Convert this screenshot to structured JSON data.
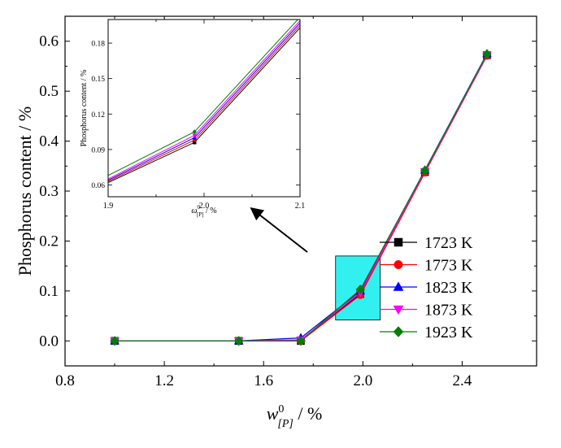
{
  "chart_data": [
    {
      "type": "line",
      "xlabel": "w",
      "xlabel_sup": "0",
      "xlabel_sub": "[P]",
      "xlabel_unit": " / %",
      "ylabel": "Phosphorus content / %",
      "xlim": [
        0.8,
        2.7
      ],
      "ylim": [
        -0.05,
        0.65
      ],
      "xticks": [
        0.8,
        1.2,
        1.6,
        2.0,
        2.4
      ],
      "xtick_labels": [
        "0.8",
        "1.2",
        "1.6",
        "2.0",
        "2.4"
      ],
      "yticks": [
        0.0,
        0.1,
        0.2,
        0.3,
        0.4,
        0.5,
        0.6
      ],
      "ytick_labels": [
        "0.0",
        "0.1",
        "0.2",
        "0.3",
        "0.4",
        "0.5",
        "0.6"
      ],
      "legend_position": "bottom-right",
      "x": [
        1.0,
        1.5,
        1.75,
        1.99,
        2.25,
        2.5
      ],
      "series": [
        {
          "name": "1723 K",
          "color": "#000000",
          "marker": "square",
          "values": [
            0.0,
            0.0,
            0.0,
            0.094,
            0.338,
            0.572
          ]
        },
        {
          "name": "1773 K",
          "color": "#ff0000",
          "marker": "circle",
          "values": [
            0.0,
            0.0,
            0.0,
            0.092,
            0.337,
            0.571
          ]
        },
        {
          "name": "1823 K",
          "color": "#0000ff",
          "marker": "triangle-up",
          "values": [
            0.0,
            0.0,
            0.006,
            0.1,
            0.342,
            0.575
          ]
        },
        {
          "name": "1873 K",
          "color": "#ff00ff",
          "marker": "triangle-down",
          "values": [
            0.0,
            0.0,
            0.002,
            0.097,
            0.339,
            0.572
          ]
        },
        {
          "name": "1923 K",
          "color": "#008000",
          "marker": "diamond",
          "values": [
            0.0,
            0.0,
            0.0,
            0.103,
            0.341,
            0.574
          ]
        }
      ],
      "highlight_region": {
        "x0": 1.89,
        "x1": 2.07,
        "y0": 0.042,
        "y1": 0.17,
        "color": "#33f0f0"
      }
    },
    {
      "type": "line",
      "role": "inset",
      "xlabel": "ω",
      "xlabel_sup": "0",
      "xlabel_sub": "[P]",
      "xlabel_unit": " / %",
      "ylabel": "Phosphorus content / %",
      "xlim": [
        1.9,
        2.1
      ],
      "ylim": [
        0.05,
        0.2
      ],
      "xticks": [
        1.9,
        2.0,
        2.1
      ],
      "xtick_labels": [
        "1.9",
        "2.0",
        "2.1"
      ],
      "yticks": [
        0.06,
        0.09,
        0.12,
        0.15,
        0.18
      ],
      "ytick_labels": [
        "0.06",
        "0.09",
        "0.12",
        "0.15",
        "0.18"
      ],
      "series": [
        {
          "name": "1723 K",
          "color": "#000000",
          "marker": "square",
          "x": [
            1.9,
            1.99,
            2.1
          ],
          "values": [
            0.062,
            0.096,
            0.193
          ]
        },
        {
          "name": "1773 K",
          "color": "#ff0000",
          "marker": "circle",
          "x": [
            1.9,
            1.99,
            2.1
          ],
          "values": [
            0.063,
            0.098,
            0.195
          ]
        },
        {
          "name": "1823 K",
          "color": "#0000ff",
          "marker": "triangle-up",
          "x": [
            1.9,
            1.99,
            2.1
          ],
          "values": [
            0.064,
            0.1,
            0.197
          ]
        },
        {
          "name": "1873 K",
          "color": "#ff00ff",
          "marker": "triangle-down",
          "x": [
            1.9,
            1.99,
            2.1
          ],
          "values": [
            0.065,
            0.102,
            0.199
          ]
        },
        {
          "name": "1923 K",
          "color": "#008000",
          "marker": "diamond",
          "x": [
            1.9,
            1.99,
            2.1
          ],
          "values": [
            0.068,
            0.105,
            0.202
          ]
        }
      ]
    }
  ]
}
